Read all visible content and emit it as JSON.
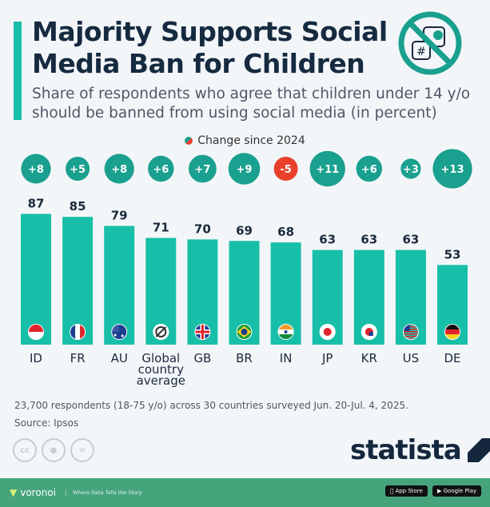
{
  "header": {
    "title": "Majority Supports Social Media Ban for Children",
    "subtitle": "Share of respondents who agree that children under 14 y/o should be banned from using social media (in percent)",
    "icon": "no-social-media-icon"
  },
  "legend": {
    "label": "Change since 2024"
  },
  "colors": {
    "bar": "#18bfa8",
    "positive": "#1aa08e",
    "negative": "#e8402d",
    "accent": "#18bfa8"
  },
  "chart_data": {
    "type": "bar",
    "categories": [
      "ID",
      "FR",
      "AU",
      "Global country average",
      "GB",
      "BR",
      "IN",
      "JP",
      "KR",
      "US",
      "DE"
    ],
    "values": [
      87,
      85,
      79,
      71,
      70,
      69,
      68,
      63,
      63,
      63,
      53
    ],
    "change_since_2024": [
      "+8",
      "+5",
      "+8",
      "+6",
      "+7",
      "+9",
      "-5",
      "+11",
      "+6",
      "+3",
      "+13"
    ],
    "flags": [
      "id",
      "fr",
      "au",
      "global",
      "gb",
      "br",
      "in",
      "jp",
      "kr",
      "us",
      "de"
    ],
    "ylim": [
      0,
      100
    ]
  },
  "footer": {
    "note": "23,700 respondents (18-75 y/o) across 30 countries surveyed Jun. 20-Jul. 4, 2025.",
    "source": "Source: Ipsos",
    "brand": "statista",
    "voronoi": "voronoi",
    "tagline": "Where Data Tells the Story",
    "app_store": "App Store",
    "google_play": "Google Play"
  }
}
